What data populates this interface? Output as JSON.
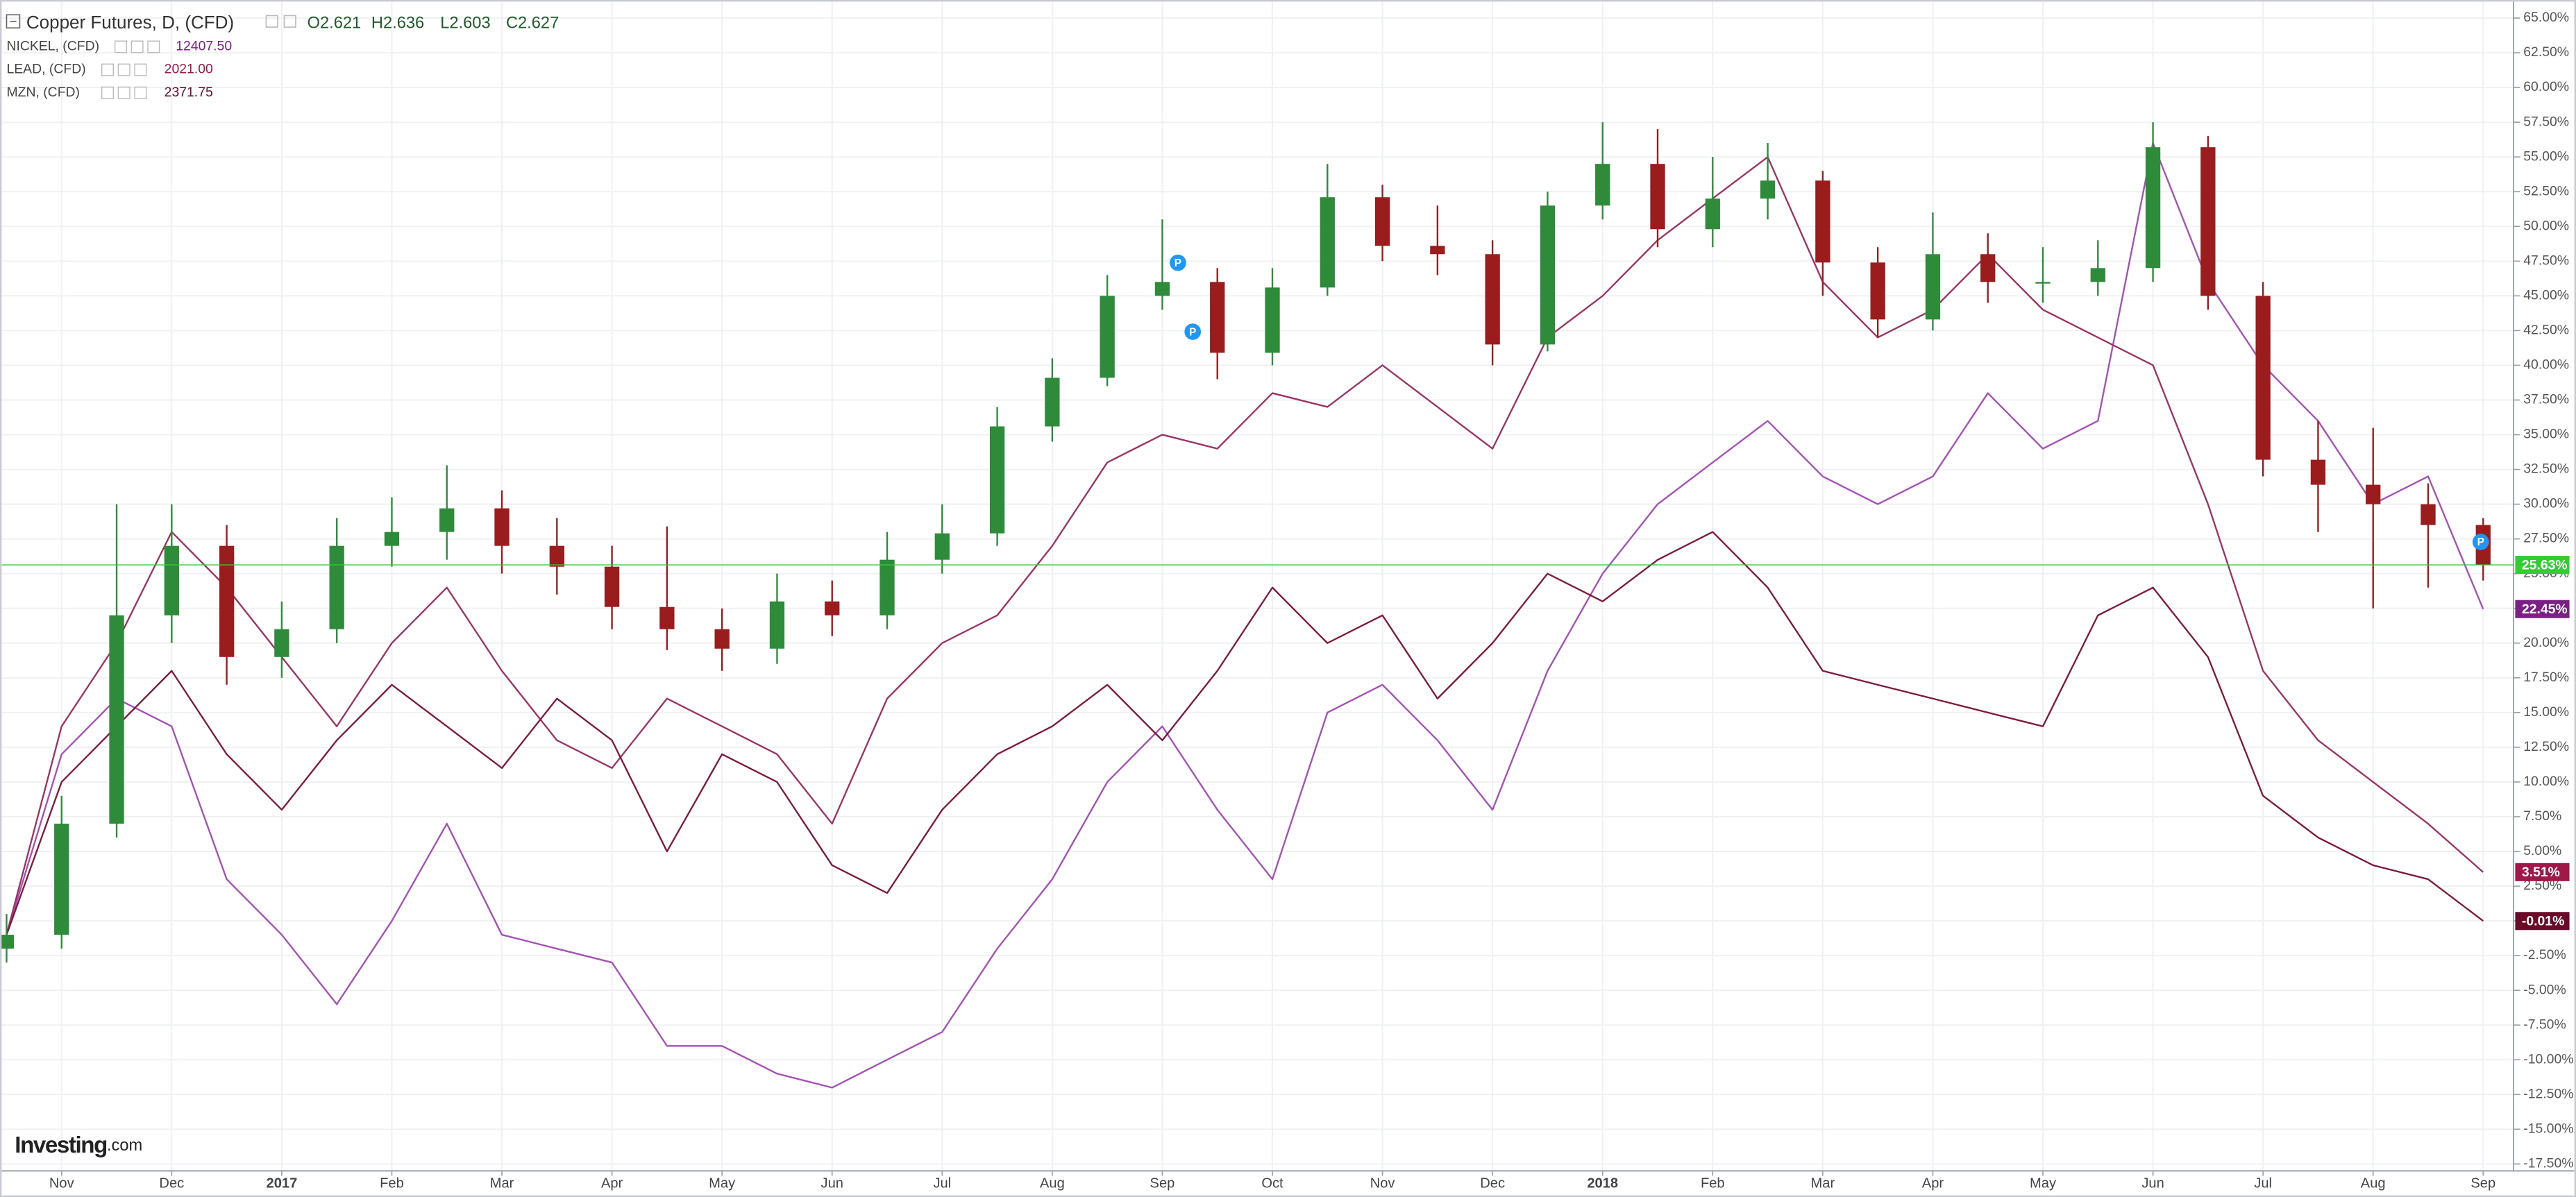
{
  "chart_data": {
    "type": "candlestick",
    "title": "Copper Futures, D, (CFD)",
    "ohlc_header": [
      "O2.621",
      "H2.636",
      "L2.603",
      "C2.627"
    ],
    "categories": [
      null,
      "Nov",
      null,
      "Dec",
      null,
      "2017",
      null,
      "Feb",
      null,
      "Mar",
      null,
      "Apr",
      null,
      "May",
      null,
      "Jun",
      null,
      "Jul",
      null,
      "Aug",
      null,
      "Sep",
      null,
      "Oct",
      null,
      "Nov",
      null,
      "Dec",
      null,
      "2018",
      null,
      "Feb",
      null,
      "Mar",
      null,
      "Apr",
      null,
      "May",
      null,
      "Jun",
      null,
      "Jul",
      null,
      "Aug",
      null,
      "Sep"
    ],
    "open": [
      -2,
      -1,
      7,
      22,
      27,
      19,
      21,
      27,
      28,
      29.7,
      27,
      25.5,
      22.6,
      21,
      19.6,
      23,
      22,
      26,
      27.9,
      35.6,
      39.1,
      45,
      46,
      40.9,
      45.6,
      52.1,
      48.6,
      48,
      41.5,
      51.5,
      54.5,
      49.8,
      52,
      53.3,
      47.4,
      43.3,
      48,
      46,
      46,
      47,
      55.7,
      45,
      33.2,
      31.4,
      30,
      28.5
    ],
    "high": [
      0.5,
      9,
      30,
      30,
      28.5,
      23,
      29,
      30.5,
      32.8,
      31,
      29,
      27,
      28.4,
      22.5,
      25,
      24.5,
      28,
      30,
      37,
      40.5,
      46.5,
      50.5,
      47,
      47,
      54.5,
      53,
      51.5,
      49,
      52.5,
      57.5,
      57,
      55,
      56,
      54,
      48.5,
      51,
      49.5,
      48.5,
      49,
      57.5,
      56.5,
      46,
      36,
      35.5,
      31.5,
      29
    ],
    "low": [
      -3,
      -2,
      6,
      20,
      17,
      17.5,
      20,
      25.5,
      26,
      25,
      23.5,
      21,
      19.5,
      18,
      18.5,
      20.5,
      21,
      25,
      27,
      34.5,
      38.5,
      44,
      39,
      40,
      45,
      47.5,
      46.5,
      40,
      41,
      50.5,
      48.5,
      48.5,
      50.5,
      45,
      42,
      42.5,
      44.5,
      44.5,
      45,
      46,
      44,
      32,
      28,
      22.5,
      24,
      24.5
    ],
    "close": [
      -1,
      7,
      22,
      27,
      19,
      21,
      27,
      28,
      29.7,
      27,
      25.5,
      22.6,
      21,
      19.6,
      23,
      22,
      26,
      27.9,
      35.6,
      39.1,
      45,
      46,
      40.9,
      45.6,
      52.1,
      48.6,
      48,
      41.5,
      51.5,
      54.5,
      49.8,
      52,
      53.3,
      47.4,
      43.3,
      48,
      46,
      46,
      47,
      55.7,
      45,
      33.2,
      31.4,
      30,
      28.5,
      25.63
    ],
    "value_labels": [
      null,
      null,
      null,
      null,
      null,
      null,
      null,
      null,
      null,
      null,
      null,
      null,
      null,
      null,
      null,
      null,
      null,
      null,
      null,
      null,
      null,
      null,
      null,
      null,
      null,
      null,
      null,
      null,
      null,
      null,
      null,
      null,
      null,
      null,
      null,
      null,
      null,
      null,
      null,
      null,
      null,
      null,
      null,
      null,
      null,
      "25.63%"
    ],
    "up_color": "#2e8b3a",
    "down_color": "#9b1c1c",
    "last_color": "#33cc33",
    "series": [
      {
        "name": "NICKEL, (CFD)",
        "type": "line",
        "price": "12407.50",
        "color": "#a550b5",
        "label_color": "#7a1f84",
        "values": [
          -1,
          12,
          16,
          14,
          3,
          -1,
          -6,
          0,
          7,
          -1,
          -2,
          -3,
          -9,
          -9,
          -11,
          -12,
          -10,
          -8,
          -2,
          3,
          10,
          14,
          8,
          3,
          15,
          17,
          13,
          8,
          18,
          25,
          30,
          33,
          36,
          32,
          30,
          32,
          38,
          34,
          36,
          56,
          46,
          40,
          36,
          30,
          32,
          22.45
        ],
        "value_labels": [
          null,
          null,
          null,
          null,
          null,
          null,
          null,
          null,
          null,
          null,
          null,
          null,
          null,
          null,
          null,
          null,
          null,
          null,
          null,
          null,
          null,
          null,
          null,
          null,
          null,
          null,
          null,
          null,
          null,
          null,
          null,
          null,
          null,
          null,
          null,
          null,
          null,
          null,
          null,
          null,
          null,
          null,
          null,
          null,
          null,
          "22.45%"
        ]
      },
      {
        "name": "LEAD, (CFD)",
        "type": "line",
        "price": "2021.00",
        "color": "#9c3463",
        "label_color": "#a0184a",
        "values": [
          -1,
          14,
          20,
          28,
          24,
          19,
          14,
          20,
          24,
          18,
          13,
          11,
          16,
          14,
          12,
          7,
          16,
          20,
          22,
          27,
          33,
          35,
          34,
          38,
          37,
          40,
          37,
          34,
          42,
          45,
          49,
          52,
          55,
          46,
          42,
          44,
          48,
          44,
          42,
          40,
          30,
          18,
          13,
          10,
          7,
          3.51
        ],
        "value_labels": [
          null,
          null,
          null,
          null,
          null,
          null,
          null,
          null,
          null,
          null,
          null,
          null,
          null,
          null,
          null,
          null,
          null,
          null,
          null,
          null,
          null,
          null,
          null,
          null,
          null,
          null,
          null,
          null,
          null,
          null,
          null,
          null,
          null,
          null,
          null,
          null,
          null,
          null,
          null,
          null,
          null,
          null,
          null,
          null,
          null,
          "3.51%"
        ]
      },
      {
        "name": "MZN, (CFD)",
        "type": "line",
        "price": "2371.75",
        "color": "#7d1a3e",
        "label_color": "#6b0a28",
        "values": [
          -1,
          10,
          14,
          18,
          12,
          8,
          13,
          17,
          14,
          11,
          16,
          13,
          5,
          12,
          10,
          4,
          2,
          8,
          12,
          14,
          17,
          13,
          18,
          24,
          20,
          22,
          16,
          20,
          25,
          23,
          26,
          28,
          24,
          18,
          17,
          16,
          15,
          14,
          22,
          24,
          19,
          9,
          6,
          4,
          3,
          -0.01
        ],
        "value_labels": [
          null,
          null,
          null,
          null,
          null,
          null,
          null,
          null,
          null,
          null,
          null,
          null,
          null,
          null,
          null,
          null,
          null,
          null,
          null,
          null,
          null,
          null,
          null,
          null,
          null,
          null,
          null,
          null,
          null,
          null,
          null,
          null,
          null,
          null,
          null,
          null,
          null,
          null,
          null,
          null,
          null,
          null,
          null,
          null,
          null,
          "-0.01%"
        ]
      }
    ],
    "ylim": [
      -18,
      66.3
    ],
    "yticks": [
      {
        "value": 65,
        "label": "65.00%"
      },
      {
        "value": 62.5,
        "label": "62.50%"
      },
      {
        "value": 60,
        "label": "60.00%"
      },
      {
        "value": 57.5,
        "label": "57.50%"
      },
      {
        "value": 55,
        "label": "55.00%"
      },
      {
        "value": 52.5,
        "label": "52.50%"
      },
      {
        "value": 50,
        "label": "50.00%"
      },
      {
        "value": 47.5,
        "label": "47.50%"
      },
      {
        "value": 45,
        "label": "45.00%"
      },
      {
        "value": 42.5,
        "label": "42.50%"
      },
      {
        "value": 40,
        "label": "40.00%"
      },
      {
        "value": 37.5,
        "label": "37.50%"
      },
      {
        "value": 35,
        "label": "35.00%"
      },
      {
        "value": 32.5,
        "label": "32.50%"
      },
      {
        "value": 30,
        "label": "30.00%"
      },
      {
        "value": 27.5,
        "label": "27.50%"
      },
      {
        "value": 25,
        "label": "25.00%"
      },
      {
        "value": 22.5,
        "label": "22.50%"
      },
      {
        "value": 20,
        "label": "20.00%"
      },
      {
        "value": 17.5,
        "label": "17.50%"
      },
      {
        "value": 15,
        "label": "15.00%"
      },
      {
        "value": 12.5,
        "label": "12.50%"
      },
      {
        "value": 10,
        "label": "10.00%"
      },
      {
        "value": 7.5,
        "label": "7.50%"
      },
      {
        "value": 5,
        "label": "5.00%"
      },
      {
        "value": 2.5,
        "label": "2.50%"
      },
      {
        "value": 0,
        "label": "0.00%"
      },
      {
        "value": -2.5,
        "label": "-2.50%"
      },
      {
        "value": -5,
        "label": "-5.00%"
      },
      {
        "value": -7.5,
        "label": "-7.50%"
      },
      {
        "value": -10,
        "label": "-10.00%"
      },
      {
        "value": -12.5,
        "label": "-12.50%"
      },
      {
        "value": -15,
        "label": "-15.00%"
      },
      {
        "value": -17.5,
        "label": "-17.50%"
      }
    ],
    "grid": true,
    "event_label": "P",
    "brand": [
      "Investing",
      ".com"
    ]
  }
}
